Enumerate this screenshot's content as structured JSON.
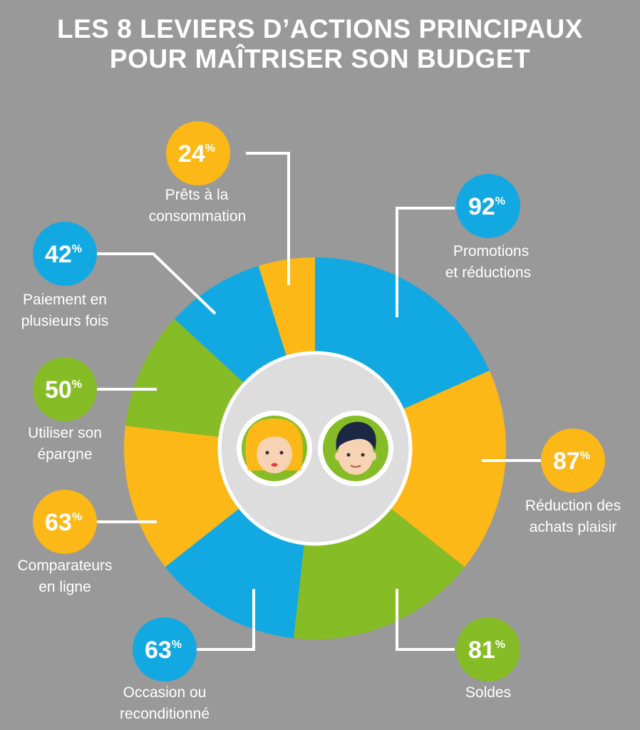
{
  "title_lines": [
    "LES 8 LEVIERS D’ACTIONS PRINCIPAUX",
    "POUR MAÎTRISER SON BUDGET"
  ],
  "colors": {
    "background": "#999999",
    "blue": "#12a9e2",
    "yellow": "#fbb817",
    "green": "#86bc25",
    "hub": "#dddddd",
    "white": "#ffffff"
  },
  "chart_data": {
    "type": "pie",
    "title": "LES 8 LEVIERS D’ACTIONS PRINCIPAUX POUR MAÎTRISER SON BUDGET",
    "unit": "%",
    "categories": [
      "Promotions et réductions",
      "Réduction des achats plaisir",
      "Soldes",
      "Occasion ou reconditionné",
      "Comparateurs en ligne",
      "Utiliser son épargne",
      "Paiement en plusieurs fois",
      "Prêts à la consommation"
    ],
    "values": [
      92,
      87,
      81,
      63,
      63,
      50,
      42,
      24
    ],
    "items": [
      {
        "value": 92,
        "label_lines": [
          "Promotions",
          "et réductions"
        ],
        "color": "#12a9e2"
      },
      {
        "value": 87,
        "label_lines": [
          "Réduction des",
          "achats plaisir"
        ],
        "color": "#fbb817"
      },
      {
        "value": 81,
        "label_lines": [
          "Soldes"
        ],
        "color": "#86bc25"
      },
      {
        "value": 63,
        "label_lines": [
          "Occasion ou",
          "reconditionné"
        ],
        "color": "#12a9e2"
      },
      {
        "value": 63,
        "label_lines": [
          "Comparateurs",
          "en ligne"
        ],
        "color": "#fbb817"
      },
      {
        "value": 50,
        "label_lines": [
          "Utiliser son",
          "épargne"
        ],
        "color": "#86bc25"
      },
      {
        "value": 42,
        "label_lines": [
          "Paiement en",
          "plusieurs fois"
        ],
        "color": "#12a9e2"
      },
      {
        "value": 24,
        "label_lines": [
          "Prêts à la",
          "consommation"
        ],
        "color": "#fbb817"
      }
    ],
    "center_icons": [
      "woman-face-icon",
      "man-face-icon"
    ]
  }
}
